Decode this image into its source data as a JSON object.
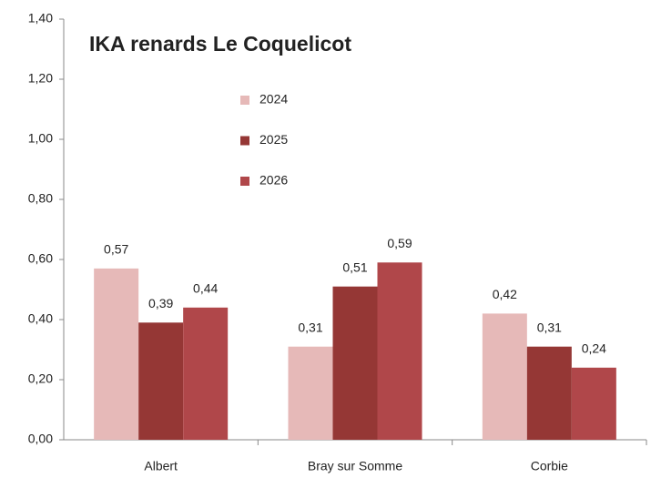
{
  "chart_data": {
    "type": "bar",
    "title": "IKA renards Le Coquelicot",
    "categories": [
      "Albert",
      "Bray sur Somme",
      "Corbie"
    ],
    "series": [
      {
        "name": "2024",
        "color": "#e6b9b8",
        "values": [
          0.57,
          0.31,
          0.42
        ],
        "value_labels": [
          "0,57",
          "0,31",
          "0,42"
        ]
      },
      {
        "name": "2025",
        "color": "#953735",
        "values": [
          0.39,
          0.51,
          0.31
        ],
        "value_labels": [
          "0,39",
          "0,51",
          "0,31"
        ]
      },
      {
        "name": "2026",
        "color": "#b0474a",
        "values": [
          0.44,
          0.59,
          0.24
        ],
        "value_labels": [
          "0,44",
          "0,59",
          "0,24"
        ]
      }
    ],
    "ylim": [
      0,
      1.4
    ],
    "yticks": [
      {
        "value": 0,
        "label": "0,00"
      },
      {
        "value": 0.2,
        "label": "0,20"
      },
      {
        "value": 0.4,
        "label": "0,40"
      },
      {
        "value": 0.6,
        "label": "0,60"
      },
      {
        "value": 0.8,
        "label": "0,80"
      },
      {
        "value": 1.0,
        "label": "1,00"
      },
      {
        "value": 1.2,
        "label": "1,20"
      },
      {
        "value": 1.4,
        "label": "1,40"
      }
    ],
    "grid": false,
    "legend": "top"
  }
}
